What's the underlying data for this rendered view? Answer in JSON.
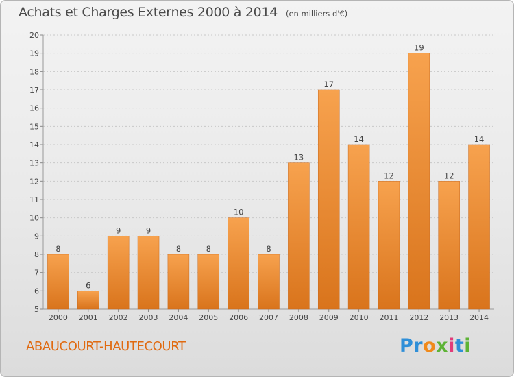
{
  "header": {
    "title": "Achats et Charges Externes 2000 à 2014",
    "subtitle": "(en milliers d'€)"
  },
  "footer": {
    "commune": "ABAUCOURT-HAUTECOURT",
    "logo_text": "Proxiti"
  },
  "colors": {
    "bar_light": "#f7a24e",
    "bar_dark": "#d9741c",
    "grid": "#c8c8c8",
    "commune_text": "#e06a10"
  },
  "chart_data": {
    "type": "bar",
    "title": "Achats et Charges Externes 2000 à 2014",
    "subtitle": "(en milliers d'€)",
    "xlabel": "",
    "ylabel": "",
    "categories": [
      "2000",
      "2001",
      "2002",
      "2003",
      "2004",
      "2005",
      "2006",
      "2007",
      "2008",
      "2009",
      "2010",
      "2011",
      "2012",
      "2013",
      "2014"
    ],
    "values": [
      8,
      6,
      9,
      9,
      8,
      8,
      10,
      8,
      13,
      17,
      14,
      12,
      19,
      12,
      14
    ],
    "ylim": [
      5,
      20
    ],
    "yticks": [
      5,
      6,
      7,
      8,
      9,
      10,
      11,
      12,
      13,
      14,
      15,
      16,
      17,
      18,
      19,
      20
    ],
    "grid": true,
    "data_labels": true
  }
}
